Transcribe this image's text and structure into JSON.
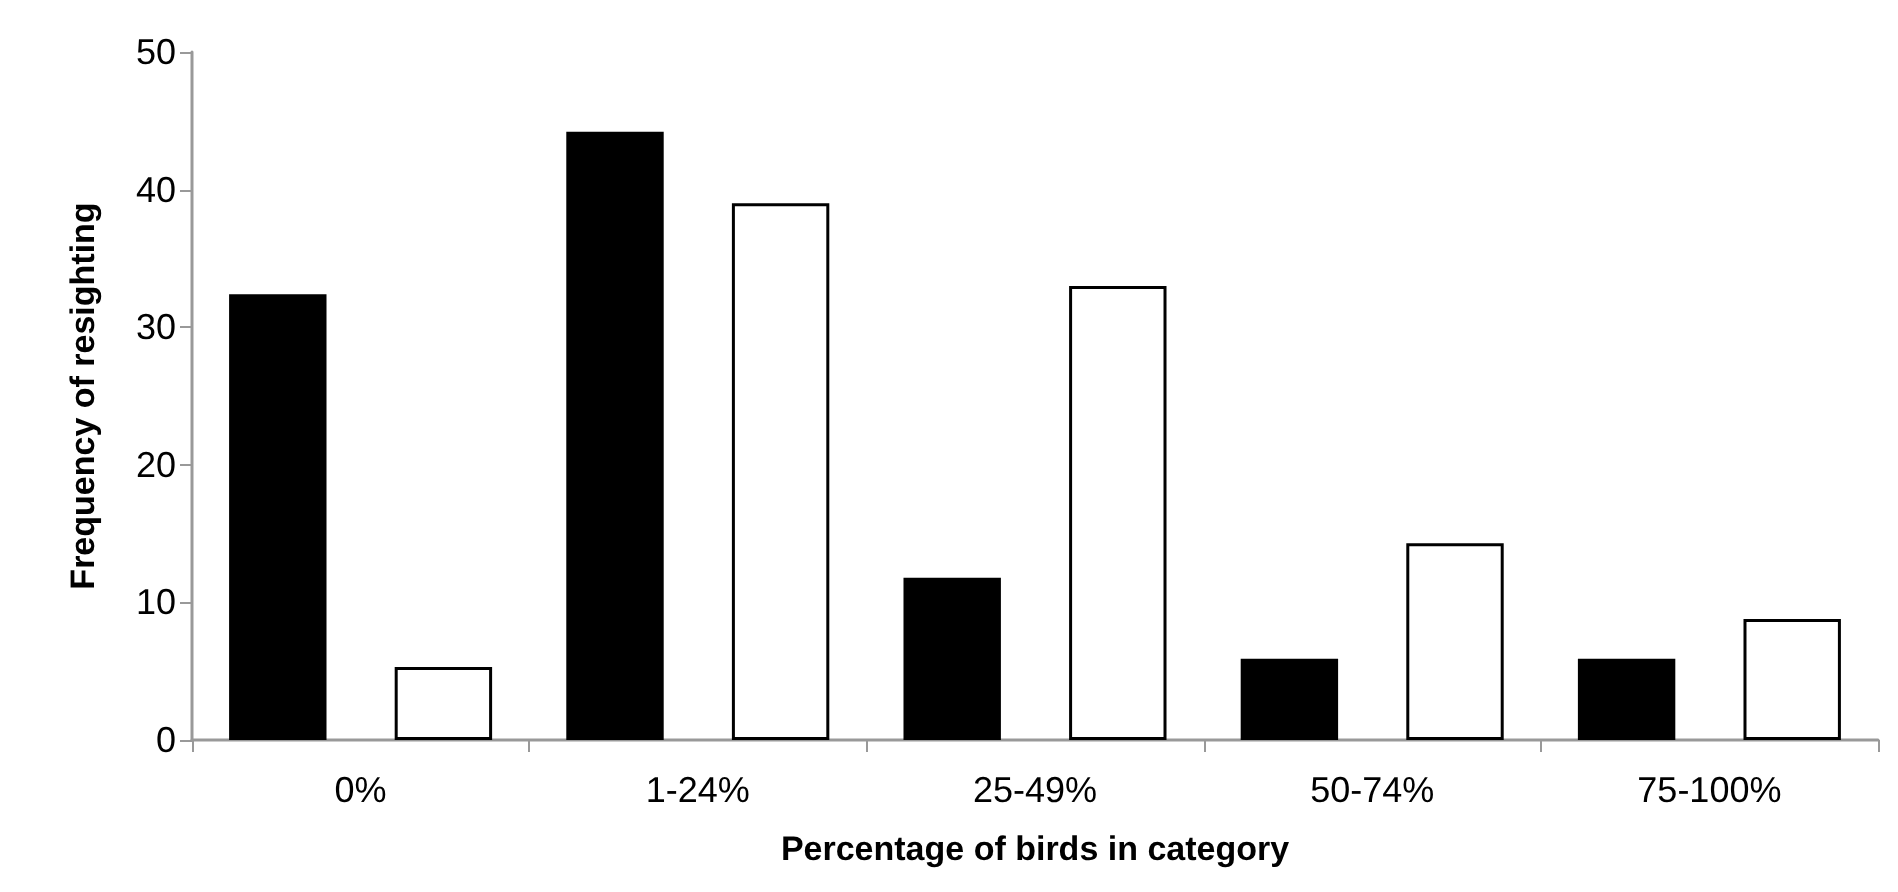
{
  "chart_data": {
    "type": "bar",
    "xlabel": "Percentage of birds in category",
    "ylabel": "Frequency of resighting",
    "categories": [
      "0%",
      "1-24%",
      "25-49%",
      "50-74%",
      "75-100%"
    ],
    "series": [
      {
        "color": "#000000",
        "values": [
          32.4,
          44.2,
          11.8,
          5.9,
          5.9
        ]
      },
      {
        "color": "#ffffff",
        "values": [
          5.3,
          39.0,
          33.0,
          14.3,
          8.8
        ]
      }
    ],
    "ylim": [
      0,
      50
    ],
    "yticks": [
      0,
      10,
      20,
      30,
      40,
      50
    ],
    "grid": false
  }
}
